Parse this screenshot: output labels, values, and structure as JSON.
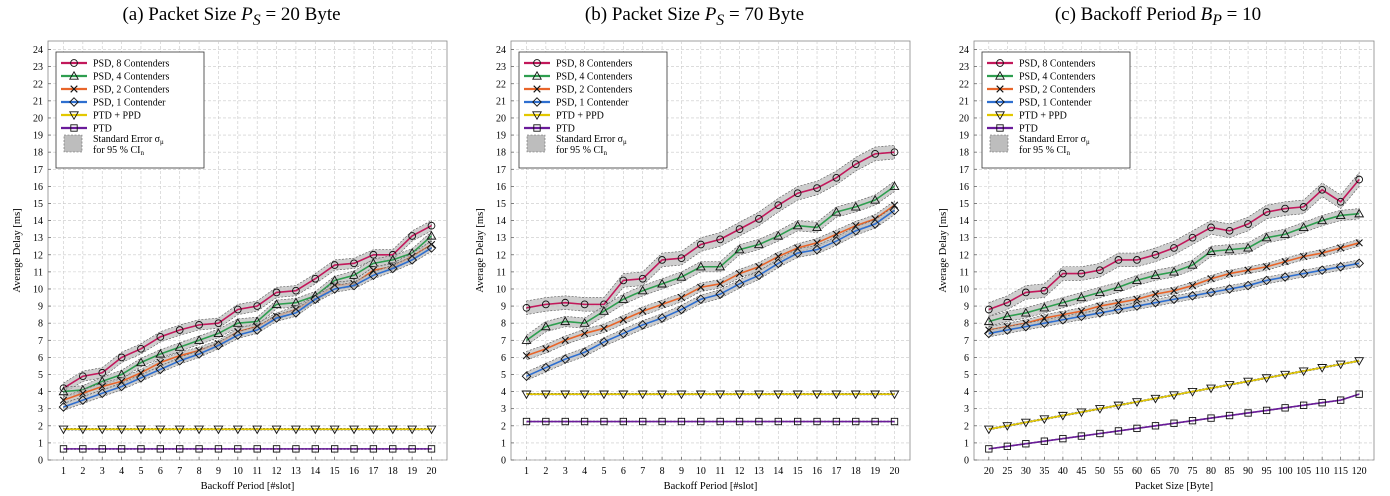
{
  "colors": {
    "psd8": "#c2185b",
    "psd4": "#2e9e4f",
    "psd2": "#e8652a",
    "psd1": "#2e6fd0",
    "ptdppd": "#e3c800",
    "ptd": "#6a1b9a",
    "band": "#bdbdbd",
    "grid": "#c8c8c8"
  },
  "legend": [
    {
      "key": "psd8",
      "label": "PSD, 8 Contenders",
      "marker": "circle"
    },
    {
      "key": "psd4",
      "label": "PSD, 4 Contenders",
      "marker": "triangle-up"
    },
    {
      "key": "psd2",
      "label": "PSD, 2 Contenders",
      "marker": "x"
    },
    {
      "key": "psd1",
      "label": "PSD, 1 Contender",
      "marker": "diamond"
    },
    {
      "key": "ptdppd",
      "label": "PTD + PPD",
      "marker": "triangle-down"
    },
    {
      "key": "ptd",
      "label": "PTD",
      "marker": "square"
    }
  ],
  "legend_band": {
    "line1": "Standard Error σ",
    "line1_sub": "μ",
    "line2": "for 95 %  CI",
    "line2_sub": "n"
  },
  "chart_data": [
    {
      "type": "line",
      "title_prefix": "(a) Packet Size ",
      "title_math": "P",
      "title_math_sub": "S",
      "title_suffix": " = 20 Byte",
      "xlabel": "Backoff Period [#slot]",
      "ylabel": "Average Delay [ms]",
      "ylim": [
        0,
        24.5
      ],
      "yticks": [
        0,
        1,
        2,
        3,
        4,
        5,
        6,
        7,
        8,
        9,
        10,
        11,
        12,
        13,
        14,
        15,
        16,
        17,
        18,
        19,
        20,
        21,
        22,
        23,
        24
      ],
      "x": [
        1,
        2,
        3,
        4,
        5,
        6,
        7,
        8,
        9,
        10,
        11,
        12,
        13,
        14,
        15,
        16,
        17,
        18,
        19,
        20
      ],
      "xticks": [
        "1",
        "2",
        "3",
        "4",
        "5",
        "6",
        "7",
        "8",
        "9",
        "10",
        "11",
        "12",
        "13",
        "14",
        "15",
        "16",
        "17",
        "18",
        "19",
        "20"
      ],
      "xlim": [
        0.2,
        20.8
      ],
      "legend_position": "top-left",
      "grid": true,
      "series": [
        {
          "key": "psd8",
          "name": "PSD, 8 Contenders",
          "values": [
            4.2,
            4.9,
            5.1,
            6.0,
            6.5,
            7.2,
            7.6,
            7.9,
            8.0,
            8.8,
            9.0,
            9.8,
            9.9,
            10.6,
            11.4,
            11.5,
            12.0,
            12.0,
            13.1,
            13.7
          ],
          "err": 0.3
        },
        {
          "key": "psd4",
          "name": "PSD, 4 Contenders",
          "values": [
            4.0,
            4.1,
            4.6,
            5.0,
            5.7,
            6.2,
            6.6,
            7.0,
            7.4,
            8.0,
            8.1,
            9.1,
            9.2,
            9.6,
            10.5,
            10.8,
            11.5,
            11.7,
            12.1,
            13.1
          ],
          "err": 0.25
        },
        {
          "key": "psd2",
          "name": "PSD, 2 Contenders",
          "values": [
            3.5,
            3.9,
            4.3,
            4.6,
            5.1,
            5.7,
            6.1,
            6.4,
            6.8,
            7.5,
            7.8,
            8.4,
            8.8,
            9.4,
            10.2,
            10.3,
            11.1,
            11.3,
            11.9,
            12.6
          ],
          "err": 0.2
        },
        {
          "key": "psd1",
          "name": "PSD, 1 Contender",
          "values": [
            3.1,
            3.5,
            3.9,
            4.3,
            4.8,
            5.3,
            5.8,
            6.2,
            6.7,
            7.3,
            7.6,
            8.3,
            8.6,
            9.4,
            10.0,
            10.2,
            10.8,
            11.2,
            11.7,
            12.4
          ],
          "err": 0.2
        },
        {
          "key": "ptdppd",
          "name": "PTD + PPD",
          "values": [
            1.8,
            1.8,
            1.8,
            1.8,
            1.8,
            1.8,
            1.8,
            1.8,
            1.8,
            1.8,
            1.8,
            1.8,
            1.8,
            1.8,
            1.8,
            1.8,
            1.8,
            1.8,
            1.8,
            1.8
          ],
          "err": 0.05
        },
        {
          "key": "ptd",
          "name": "PTD",
          "values": [
            0.65,
            0.65,
            0.65,
            0.65,
            0.65,
            0.65,
            0.65,
            0.65,
            0.65,
            0.65,
            0.65,
            0.65,
            0.65,
            0.65,
            0.65,
            0.65,
            0.65,
            0.65,
            0.65,
            0.65
          ],
          "err": 0.03
        }
      ]
    },
    {
      "type": "line",
      "title_prefix": "(b) Packet Size ",
      "title_math": "P",
      "title_math_sub": "S",
      "title_suffix": " = 70 Byte",
      "xlabel": "Backoff Period [#slot]",
      "ylabel": "Average Delay [ms]",
      "ylim": [
        0,
        24.5
      ],
      "yticks": [
        0,
        1,
        2,
        3,
        4,
        5,
        6,
        7,
        8,
        9,
        10,
        11,
        12,
        13,
        14,
        15,
        16,
        17,
        18,
        19,
        20,
        21,
        22,
        23,
        24
      ],
      "x": [
        1,
        2,
        3,
        4,
        5,
        6,
        7,
        8,
        9,
        10,
        11,
        12,
        13,
        14,
        15,
        16,
        17,
        18,
        19,
        20
      ],
      "xticks": [
        "1",
        "2",
        "3",
        "4",
        "5",
        "6",
        "7",
        "8",
        "9",
        "10",
        "11",
        "12",
        "13",
        "14",
        "15",
        "16",
        "17",
        "18",
        "19",
        "20"
      ],
      "xlim": [
        0.2,
        20.8
      ],
      "legend_position": "top-left",
      "grid": true,
      "series": [
        {
          "key": "psd8",
          "name": "PSD, 8 Contenders",
          "values": [
            8.9,
            9.1,
            9.2,
            9.1,
            9.1,
            10.5,
            10.6,
            11.7,
            11.8,
            12.6,
            12.9,
            13.5,
            14.1,
            14.9,
            15.6,
            15.9,
            16.5,
            17.3,
            17.9,
            18.0
          ],
          "err": 0.4
        },
        {
          "key": "psd4",
          "name": "PSD, 4 Contenders",
          "values": [
            7.0,
            7.8,
            8.1,
            8.0,
            8.7,
            9.4,
            9.9,
            10.3,
            10.7,
            11.3,
            11.3,
            12.3,
            12.6,
            13.1,
            13.7,
            13.6,
            14.5,
            14.8,
            15.2,
            16.0
          ],
          "err": 0.3
        },
        {
          "key": "psd2",
          "name": "PSD, 2 Contenders",
          "values": [
            6.1,
            6.5,
            7.0,
            7.4,
            7.7,
            8.2,
            8.7,
            9.1,
            9.5,
            10.1,
            10.3,
            10.9,
            11.3,
            11.9,
            12.4,
            12.7,
            13.2,
            13.7,
            14.1,
            14.9
          ],
          "err": 0.25
        },
        {
          "key": "psd1",
          "name": "PSD, 1 Contender",
          "values": [
            4.9,
            5.4,
            5.9,
            6.3,
            6.9,
            7.4,
            7.9,
            8.3,
            8.8,
            9.4,
            9.7,
            10.3,
            10.8,
            11.5,
            12.1,
            12.3,
            12.8,
            13.4,
            13.8,
            14.6
          ],
          "err": 0.25
        },
        {
          "key": "ptdppd",
          "name": "PTD + PPD",
          "values": [
            3.85,
            3.85,
            3.85,
            3.85,
            3.85,
            3.85,
            3.85,
            3.85,
            3.85,
            3.85,
            3.85,
            3.85,
            3.85,
            3.85,
            3.85,
            3.85,
            3.85,
            3.85,
            3.85,
            3.85
          ],
          "err": 0.05
        },
        {
          "key": "ptd",
          "name": "PTD",
          "values": [
            2.25,
            2.25,
            2.25,
            2.25,
            2.25,
            2.25,
            2.25,
            2.25,
            2.25,
            2.25,
            2.25,
            2.25,
            2.25,
            2.25,
            2.25,
            2.25,
            2.25,
            2.25,
            2.25,
            2.25
          ],
          "err": 0.03
        }
      ]
    },
    {
      "type": "line",
      "title_prefix": "(c) Backoff Period ",
      "title_math": "B",
      "title_math_sub": "P",
      "title_suffix": " = 10",
      "xlabel": "Packet Size [Byte]",
      "ylabel": "Average Delay [ms]",
      "ylim": [
        0,
        24.5
      ],
      "yticks": [
        0,
        1,
        2,
        3,
        4,
        5,
        6,
        7,
        8,
        9,
        10,
        11,
        12,
        13,
        14,
        15,
        16,
        17,
        18,
        19,
        20,
        21,
        22,
        23,
        24
      ],
      "x": [
        20,
        25,
        30,
        35,
        40,
        45,
        50,
        55,
        60,
        65,
        70,
        75,
        80,
        85,
        90,
        95,
        100,
        105,
        110,
        115,
        120
      ],
      "xticks": [
        "20",
        "25",
        "30",
        "35",
        "40",
        "45",
        "50",
        "55",
        "60",
        "65",
        "70",
        "75",
        "80",
        "85",
        "90",
        "95",
        "100",
        "105",
        "110",
        "115",
        "120"
      ],
      "xlim": [
        16,
        124
      ],
      "legend_position": "top-left",
      "grid": true,
      "series": [
        {
          "key": "psd8",
          "name": "PSD, 8 Contenders",
          "values": [
            8.8,
            9.2,
            9.8,
            9.9,
            10.9,
            10.9,
            11.1,
            11.7,
            11.7,
            12.0,
            12.4,
            13.0,
            13.6,
            13.4,
            13.8,
            14.5,
            14.7,
            14.8,
            15.8,
            15.1,
            16.4
          ],
          "err": 0.4
        },
        {
          "key": "psd4",
          "name": "PSD, 4 Contenders",
          "values": [
            8.1,
            8.4,
            8.6,
            8.9,
            9.2,
            9.5,
            9.8,
            10.1,
            10.5,
            10.8,
            11.0,
            11.4,
            12.2,
            12.3,
            12.4,
            13.0,
            13.2,
            13.6,
            14.0,
            14.3,
            14.4
          ],
          "err": 0.3
        },
        {
          "key": "psd2",
          "name": "PSD, 2 Contenders",
          "values": [
            7.6,
            7.8,
            8.0,
            8.3,
            8.5,
            8.7,
            9.0,
            9.2,
            9.4,
            9.7,
            9.9,
            10.2,
            10.6,
            10.9,
            11.1,
            11.3,
            11.6,
            11.9,
            12.1,
            12.4,
            12.7
          ],
          "err": 0.2
        },
        {
          "key": "psd1",
          "name": "PSD, 1 Contender",
          "values": [
            7.4,
            7.6,
            7.8,
            8.0,
            8.2,
            8.4,
            8.6,
            8.8,
            9.0,
            9.2,
            9.4,
            9.6,
            9.8,
            10.0,
            10.2,
            10.5,
            10.7,
            10.9,
            11.1,
            11.3,
            11.5
          ],
          "err": 0.2
        },
        {
          "key": "ptdppd",
          "name": "PTD + PPD",
          "values": [
            1.8,
            2.0,
            2.2,
            2.4,
            2.6,
            2.8,
            3.0,
            3.2,
            3.4,
            3.6,
            3.8,
            4.0,
            4.2,
            4.4,
            4.6,
            4.8,
            5.0,
            5.2,
            5.4,
            5.6,
            5.8
          ],
          "err": 0.05
        },
        {
          "key": "ptd",
          "name": "PTD",
          "values": [
            0.65,
            0.8,
            0.95,
            1.1,
            1.25,
            1.4,
            1.55,
            1.7,
            1.85,
            2.0,
            2.15,
            2.3,
            2.45,
            2.6,
            2.75,
            2.9,
            3.05,
            3.2,
            3.35,
            3.5,
            3.85
          ],
          "err": 0.03
        }
      ]
    }
  ]
}
